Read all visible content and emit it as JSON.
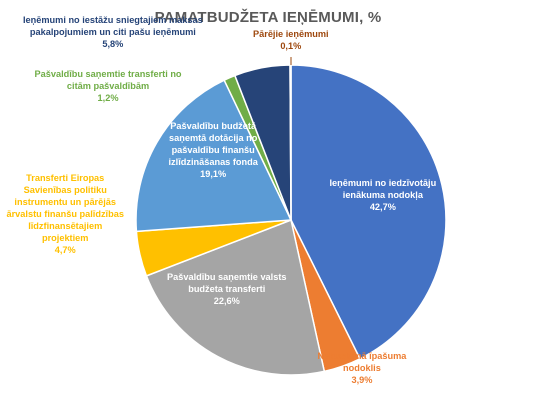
{
  "chart_data": {
    "type": "pie",
    "title": "PAMATBUDŽETA IEŅĒMUMI, %",
    "start_angle_deg": 90,
    "direction": "clockwise",
    "slices": [
      {
        "label_lines": [
          "Ieņēmumi no iedzīvotāju",
          "ienākuma nodokļa"
        ],
        "value": 42.7,
        "value_text": "42,7%",
        "color": "#4472C4",
        "label_color": "#ffffff"
      },
      {
        "label_lines": [
          "Nekustamā īpašuma",
          "nodoklis"
        ],
        "value": 3.9,
        "value_text": "3,9%",
        "color": "#ED7D31",
        "label_color": "#ED7D31"
      },
      {
        "label_lines": [
          "Pašvaldību saņemtie valsts",
          "budžeta transferti"
        ],
        "value": 22.6,
        "value_text": "22,6%",
        "color": "#A5A5A5",
        "label_color": "#ffffff"
      },
      {
        "label_lines": [
          "Transferti Eiropas",
          "Savienības politiku",
          "instrumentu un pārējās",
          "ārvalstu finanšu palīdzības",
          "līdzfinansētajiem",
          "projektiem"
        ],
        "value": 4.7,
        "value_text": "4,7%",
        "color": "#FFC000",
        "label_color": "#FFC000"
      },
      {
        "label_lines": [
          "Pašvaldību budžetā",
          "saņemtā dotācija no",
          "pašvaldību finanšu",
          "izlīdzināšanas fonda"
        ],
        "value": 19.1,
        "value_text": "19,1%",
        "color": "#5B9BD5",
        "label_color": "#ffffff"
      },
      {
        "label_lines": [
          "Pašvaldību saņemtie transferti no",
          "citām pašvaldībām"
        ],
        "value": 1.2,
        "value_text": "1,2%",
        "color": "#70AD47",
        "label_color": "#70AD47"
      },
      {
        "label_lines": [
          "Ieņēmumi no iestāžu sniegtajiem maksas",
          "pakalpojumiem un citi pašu ieņēmumi"
        ],
        "value": 5.8,
        "value_text": "5,8%",
        "color": "#264478",
        "label_color": "#264478"
      },
      {
        "label_lines": [
          "Pārējie ieņēmumi"
        ],
        "value": 0.1,
        "value_text": "0,1%",
        "color": "#9E480E",
        "label_color": "#9E480E"
      }
    ]
  }
}
